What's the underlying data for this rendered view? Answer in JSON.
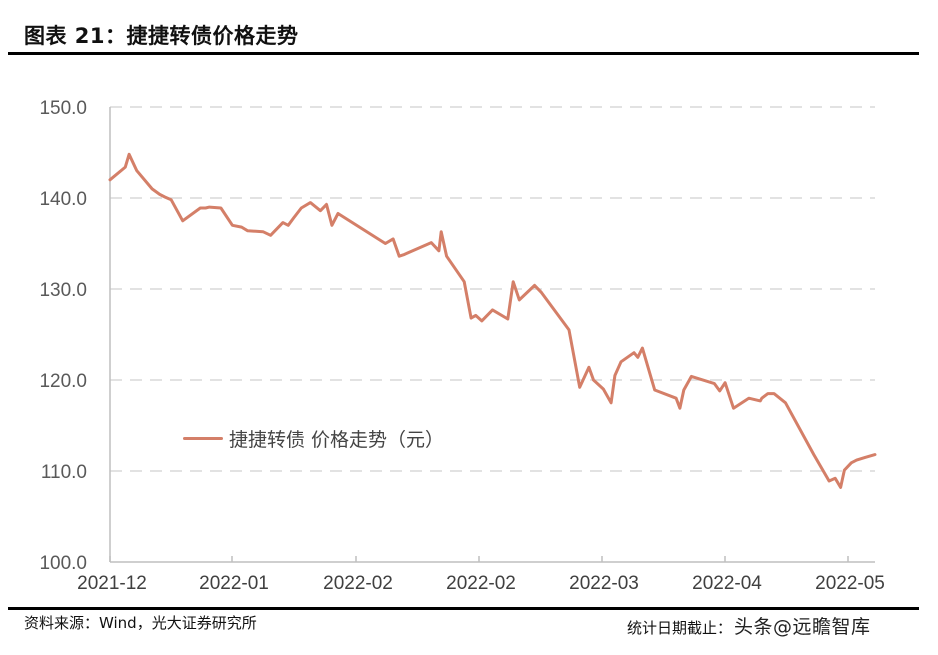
{
  "header": {
    "title": "图表 21：捷捷转债价格走势"
  },
  "footer": {
    "source": "资料来源：Wind，光大证券研究所",
    "date_label": "统计日期截止：",
    "watermark": "头条@远瞻智库"
  },
  "colors": {
    "series": "#D47F68",
    "grid": "#D9D9D9",
    "axis": "#BFBFBF"
  },
  "chart_data": {
    "type": "line",
    "title": "捷捷转债价格走势",
    "xlabel": "",
    "ylabel": "",
    "ylim": [
      100,
      150
    ],
    "yticks": [
      "100.0",
      "110.0",
      "120.0",
      "130.0",
      "140.0",
      "150.0"
    ],
    "xticks": [
      "2021-12",
      "2022-01",
      "2022-02",
      "2022-02",
      "2022-03",
      "2022-04",
      "2022-05"
    ],
    "grid": "horizontal dashed",
    "legend": {
      "position": "inside-left",
      "entries": [
        "捷捷转债 价格走势（元）"
      ]
    },
    "series": [
      {
        "name": "捷捷转债 价格走势（元）",
        "x_pos": [
          0.0,
          0.02,
          0.025,
          0.035,
          0.055,
          0.065,
          0.072,
          0.08,
          0.095,
          0.118,
          0.125,
          0.13,
          0.145,
          0.16,
          0.172,
          0.18,
          0.2,
          0.21,
          0.226,
          0.233,
          0.24,
          0.25,
          0.262,
          0.275,
          0.283,
          0.29,
          0.298,
          0.36,
          0.37,
          0.378,
          0.385,
          0.39,
          0.42,
          0.43,
          0.433,
          0.44,
          0.463,
          0.472,
          0.478,
          0.486,
          0.5,
          0.52,
          0.527,
          0.535,
          0.555,
          0.564,
          0.6,
          0.614,
          0.626,
          0.632,
          0.645,
          0.655,
          0.66,
          0.668,
          0.685,
          0.69,
          0.696,
          0.712,
          0.74,
          0.745,
          0.75,
          0.76,
          0.79,
          0.797,
          0.804,
          0.815,
          0.835,
          0.85,
          0.852,
          0.86,
          0.868,
          0.883,
          0.92,
          0.94,
          0.948,
          0.955,
          0.96,
          0.969,
          0.976,
          0.987,
          1.0
        ],
        "values": [
          142.0,
          143.4,
          144.8,
          143.0,
          141.0,
          140.4,
          140.1,
          139.8,
          137.5,
          138.9,
          138.9,
          139.0,
          138.9,
          137.0,
          136.8,
          136.4,
          136.3,
          135.9,
          137.3,
          137.0,
          137.8,
          138.9,
          139.5,
          138.6,
          139.3,
          137.0,
          138.3,
          135.0,
          135.5,
          133.6,
          133.8,
          134.0,
          135.1,
          134.2,
          136.3,
          133.6,
          130.8,
          126.8,
          127.1,
          126.5,
          127.7,
          126.7,
          130.8,
          128.8,
          130.4,
          129.6,
          125.5,
          119.2,
          121.4,
          120.0,
          119.0,
          117.5,
          120.5,
          122.0,
          123.0,
          122.5,
          123.5,
          118.9,
          118.0,
          116.9,
          118.9,
          120.4,
          119.6,
          118.8,
          119.7,
          116.9,
          118.0,
          117.7,
          118.0,
          118.5,
          118.5,
          117.5,
          111.8,
          108.9,
          109.2,
          108.2,
          110.1,
          110.9,
          111.2,
          111.5,
          111.8
        ]
      }
    ]
  }
}
